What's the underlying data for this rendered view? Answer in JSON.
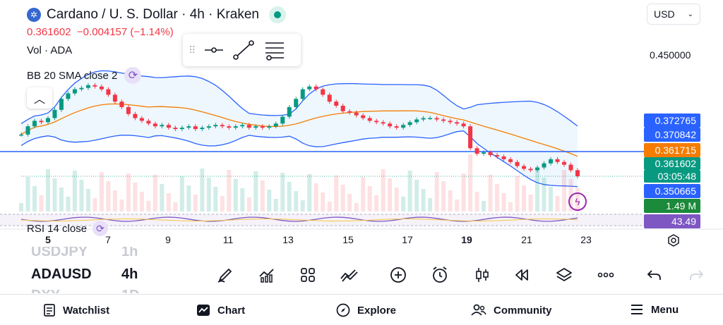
{
  "header": {
    "title": "Cardano / U. S. Dollar · 4h · Kraken",
    "price": "0.361602",
    "change": "−0.004157",
    "change_pct": "(−1.14%)",
    "vol_label": "Vol · ADA",
    "bb_label": "BB 20 SMA close 2",
    "rsi_label": "RSI 14 close",
    "currency": "USD"
  },
  "price_axis": {
    "top_label": "0.450000",
    "labels": [
      {
        "text": "0.372765",
        "color": "#2962ff"
      },
      {
        "text": "0.370842",
        "color": "#2962ff"
      },
      {
        "text": "0.361715",
        "color": "#f57c00"
      },
      {
        "text": "0.361602",
        "color": "#089981"
      },
      {
        "text": "03:05:48",
        "color": "#089981"
      },
      {
        "text": "0.350665",
        "color": "#2962ff"
      },
      {
        "text": "1.49 M",
        "color": "#1b8a3a"
      },
      {
        "text": "43.49",
        "color": "#7e57c2"
      }
    ]
  },
  "time_axis": {
    "ticks": [
      "5",
      "7",
      "9",
      "11",
      "13",
      "15",
      "17",
      "19",
      "21",
      "23"
    ]
  },
  "symbol_list": {
    "rows": [
      {
        "symbol": "USDJPY",
        "interval": "1h"
      },
      {
        "symbol": "ADAUSD",
        "interval": "4h"
      },
      {
        "symbol": "DXY",
        "interval": "1D"
      }
    ]
  },
  "toolbar": {
    "icons": [
      "brush-icon",
      "indicators-icon",
      "templates-icon",
      "compare-icon",
      "add-icon",
      "alert-icon",
      "bar-style-icon",
      "replay-icon",
      "layers-icon",
      "more-icon",
      "undo-icon",
      "redo-icon"
    ]
  },
  "nav": {
    "items": [
      {
        "label": "Watchlist",
        "icon": "watchlist-icon"
      },
      {
        "label": "Chart",
        "icon": "chart-icon"
      },
      {
        "label": "Explore",
        "icon": "explore-icon"
      },
      {
        "label": "Community",
        "icon": "community-icon"
      },
      {
        "label": "Menu",
        "icon": "menu-icon"
      }
    ]
  },
  "colors": {
    "up": "#089981",
    "down": "#f23645",
    "bb_band": "#2962ff",
    "bb_basis": "#f57c00",
    "rsi": "#7e57c2"
  },
  "chart_data": {
    "type": "candlestick",
    "symbol": "ADAUSD",
    "interval": "4h",
    "x_ticks": [
      "5",
      "7",
      "9",
      "11",
      "13",
      "15",
      "17",
      "19",
      "21",
      "23"
    ],
    "y_labels_visible": [
      "0.450000",
      "0.372765",
      "0.370842",
      "0.361715",
      "0.361602",
      "0.350665"
    ],
    "last_close": 0.361602,
    "bb_upper_last": 0.372765,
    "bb_basis_last": 0.361715,
    "bb_lower_last": 0.350665,
    "volume_last": "1.49 M",
    "rsi_last": 43.49,
    "closes": [
      0.392,
      0.398,
      0.402,
      0.401,
      0.404,
      0.41,
      0.418,
      0.422,
      0.425,
      0.426,
      0.428,
      0.427,
      0.425,
      0.421,
      0.416,
      0.412,
      0.407,
      0.404,
      0.402,
      0.4,
      0.398,
      0.399,
      0.397,
      0.396,
      0.397,
      0.398,
      0.396,
      0.397,
      0.398,
      0.399,
      0.398,
      0.397,
      0.398,
      0.399,
      0.397,
      0.398,
      0.397,
      0.398,
      0.4,
      0.405,
      0.412,
      0.418,
      0.425,
      0.427,
      0.425,
      0.421,
      0.416,
      0.413,
      0.409,
      0.408,
      0.406,
      0.404,
      0.402,
      0.401,
      0.4,
      0.398,
      0.397,
      0.399,
      0.401,
      0.403,
      0.404,
      0.404,
      0.403,
      0.402,
      0.401,
      0.4,
      0.398,
      0.382,
      0.378,
      0.379,
      0.377,
      0.376,
      0.374,
      0.372,
      0.369,
      0.367,
      0.366,
      0.368,
      0.371,
      0.374,
      0.372,
      0.37,
      0.366,
      0.3616
    ]
  }
}
